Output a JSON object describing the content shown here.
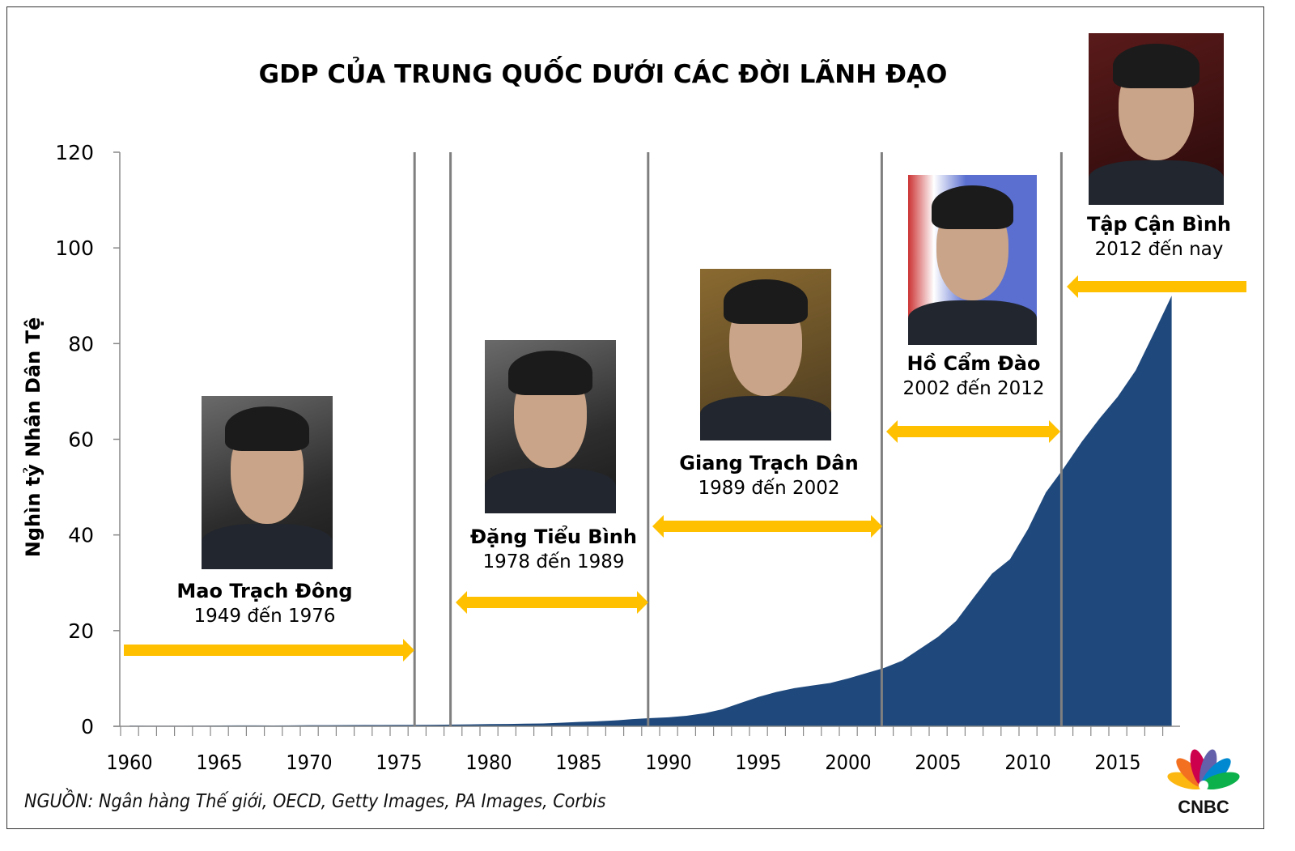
{
  "chart_data": {
    "type": "area",
    "title": "GDP CỦA TRUNG QUỐC DƯỚI CÁC ĐỜI LÃNH ĐẠO",
    "ylabel": "Nghìn tỷ Nhân Dân Tệ",
    "xlabel": "",
    "ylim": [
      0,
      120
    ],
    "yticks": [
      "0",
      "20",
      "40",
      "60",
      "80",
      "100",
      "120"
    ],
    "xlim": [
      1960,
      2018
    ],
    "xticks": [
      "1960",
      "1965",
      "1970",
      "1975",
      "1980",
      "1985",
      "1990",
      "1995",
      "2000",
      "2005",
      "2010",
      "2015"
    ],
    "fill_color": "#1f497d",
    "grid": false,
    "x": [
      1960,
      1961,
      1962,
      1963,
      1964,
      1965,
      1966,
      1967,
      1968,
      1969,
      1970,
      1971,
      1972,
      1973,
      1974,
      1975,
      1976,
      1977,
      1978,
      1979,
      1980,
      1981,
      1982,
      1983,
      1984,
      1985,
      1986,
      1987,
      1988,
      1989,
      1990,
      1991,
      1992,
      1993,
      1994,
      1995,
      1996,
      1997,
      1998,
      1999,
      2000,
      2001,
      2002,
      2003,
      2004,
      2005,
      2006,
      2007,
      2008,
      2009,
      2010,
      2011,
      2012,
      2013,
      2014,
      2015,
      2016,
      2017,
      2018
    ],
    "values": [
      0.15,
      0.12,
      0.12,
      0.12,
      0.14,
      0.17,
      0.19,
      0.18,
      0.17,
      0.19,
      0.23,
      0.24,
      0.25,
      0.27,
      0.28,
      0.3,
      0.3,
      0.32,
      0.37,
      0.41,
      0.46,
      0.49,
      0.54,
      0.6,
      0.73,
      0.91,
      1.04,
      1.22,
      1.51,
      1.72,
      1.89,
      2.2,
      2.72,
      3.57,
      4.86,
      6.13,
      7.18,
      7.97,
      8.52,
      9.06,
      10.0,
      11.1,
      12.2,
      13.7,
      16.2,
      18.7,
      22.0,
      27.0,
      31.9,
      34.9,
      41.2,
      48.9,
      54.0,
      59.5,
      64.4,
      68.9,
      74.4,
      82.1,
      90.0
    ],
    "leader_boundaries": [
      1976,
      1978,
      1989,
      2002,
      2012
    ]
  },
  "leaders": [
    {
      "name": "Mao Trạch Đông",
      "years": "1949 đến 1976"
    },
    {
      "name": "Đặng Tiểu Bình",
      "years": "1978 đến 1989"
    },
    {
      "name": "Giang Trạch Dân",
      "years": "1989 đến 2002"
    },
    {
      "name": "Hồ Cẩm Đào",
      "years": "2002 đến 2012"
    },
    {
      "name": "Tập Cận Bình",
      "years": "2012 đến nay"
    }
  ],
  "arrow_color": "#ffc000",
  "source": "NGUỒN: Ngân hàng Thế giới, OECD, Getty Images, PA Images, Corbis",
  "logo": "CNBC"
}
